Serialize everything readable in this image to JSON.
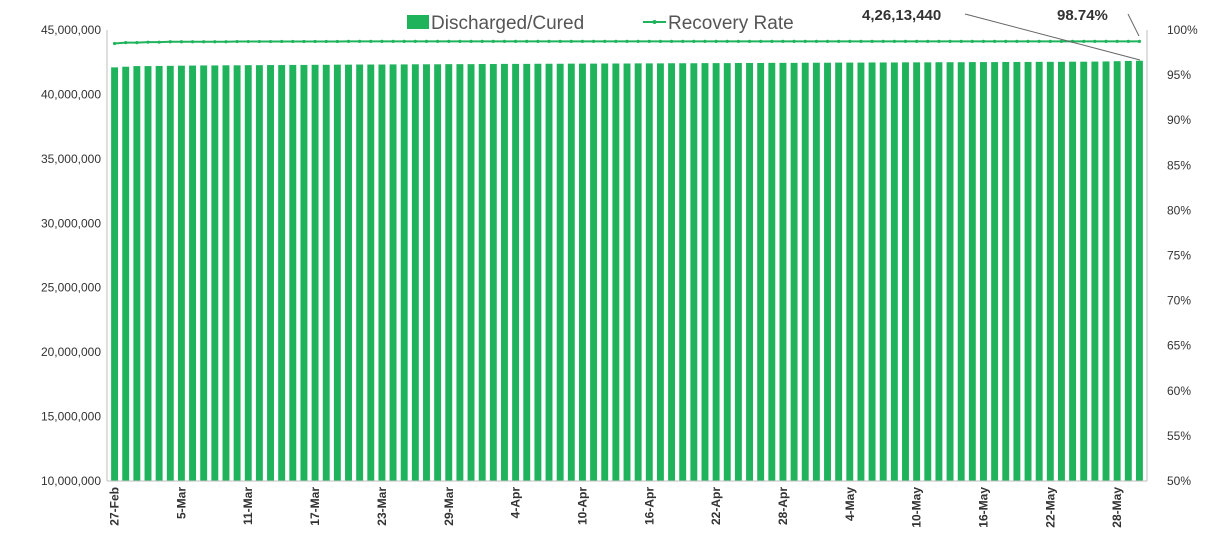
{
  "chart_data": {
    "type": "bar",
    "title": "",
    "xlabel": "",
    "ylabel": "",
    "y2label": "",
    "ylim": [
      10000000,
      45000000
    ],
    "y2lim": [
      50,
      100
    ],
    "grid": false,
    "legend_position": "top",
    "start_date": "27-Feb",
    "num_days": 93,
    "x_tick_labels": [
      "27-Feb",
      "5-Mar",
      "11-Mar",
      "17-Mar",
      "23-Mar",
      "29-Mar",
      "4-Apr",
      "10-Apr",
      "16-Apr",
      "22-Apr",
      "28-Apr",
      "4-May",
      "10-May",
      "16-May",
      "22-May",
      "28-May"
    ],
    "y_tick_labels": [
      "10,000,000",
      "15,000,000",
      "20,000,000",
      "25,000,000",
      "30,000,000",
      "35,000,000",
      "40,000,000",
      "45,000,000"
    ],
    "y2_tick_labels": [
      "50%",
      "55%",
      "60%",
      "65%",
      "70%",
      "75%",
      "80%",
      "85%",
      "90%",
      "95%",
      "100%"
    ],
    "series": [
      {
        "name": "Discharged/Cured",
        "type": "bar",
        "axis": "left",
        "color": "#1fb35c",
        "values": [
          42100000,
          42150000,
          42200000,
          42200000,
          42210000,
          42220000,
          42230000,
          42240000,
          42250000,
          42250000,
          42260000,
          42260000,
          42270000,
          42270000,
          42280000,
          42280000,
          42290000,
          42290000,
          42300000,
          42300000,
          42310000,
          42310000,
          42320000,
          42320000,
          42320000,
          42330000,
          42330000,
          42340000,
          42340000,
          42340000,
          42350000,
          42350000,
          42350000,
          42360000,
          42360000,
          42370000,
          42370000,
          42370000,
          42380000,
          42380000,
          42380000,
          42390000,
          42390000,
          42390000,
          42400000,
          42400000,
          42400000,
          42410000,
          42410000,
          42410000,
          42420000,
          42420000,
          42420000,
          42430000,
          42430000,
          42430000,
          42440000,
          42440000,
          42440000,
          42450000,
          42450000,
          42450000,
          42460000,
          42460000,
          42460000,
          42470000,
          42470000,
          42470000,
          42480000,
          42480000,
          42480000,
          42490000,
          42490000,
          42490000,
          42500000,
          42500000,
          42500000,
          42510000,
          42510000,
          42510000,
          42520000,
          42520000,
          42520000,
          42530000,
          42530000,
          42530000,
          42540000,
          42540000,
          42550000,
          42560000,
          42580000,
          42600000,
          42613440
        ]
      },
      {
        "name": "Recovery Rate",
        "type": "line",
        "axis": "right",
        "color": "#1fb35c",
        "values": [
          98.5,
          98.6,
          98.6,
          98.65,
          98.65,
          98.7,
          98.7,
          98.7,
          98.7,
          98.7,
          98.7,
          98.72,
          98.72,
          98.72,
          98.72,
          98.73,
          98.73,
          98.73,
          98.73,
          98.73,
          98.73,
          98.74,
          98.74,
          98.74,
          98.74,
          98.74,
          98.74,
          98.74,
          98.74,
          98.74,
          98.74,
          98.74,
          98.74,
          98.74,
          98.74,
          98.74,
          98.74,
          98.74,
          98.74,
          98.74,
          98.74,
          98.74,
          98.74,
          98.74,
          98.74,
          98.74,
          98.74,
          98.74,
          98.74,
          98.74,
          98.74,
          98.74,
          98.74,
          98.74,
          98.74,
          98.74,
          98.74,
          98.74,
          98.74,
          98.74,
          98.74,
          98.74,
          98.74,
          98.74,
          98.74,
          98.74,
          98.74,
          98.74,
          98.74,
          98.74,
          98.74,
          98.74,
          98.74,
          98.74,
          98.74,
          98.74,
          98.74,
          98.74,
          98.74,
          98.74,
          98.74,
          98.74,
          98.74,
          98.74,
          98.74,
          98.74,
          98.74,
          98.74,
          98.74,
          98.74,
          98.74,
          98.74,
          98.74
        ]
      }
    ],
    "annotations": [
      {
        "label": "4,26,13,440",
        "series": "Discharged/Cured"
      },
      {
        "label": "98.74%",
        "series": "Recovery Rate"
      }
    ]
  }
}
